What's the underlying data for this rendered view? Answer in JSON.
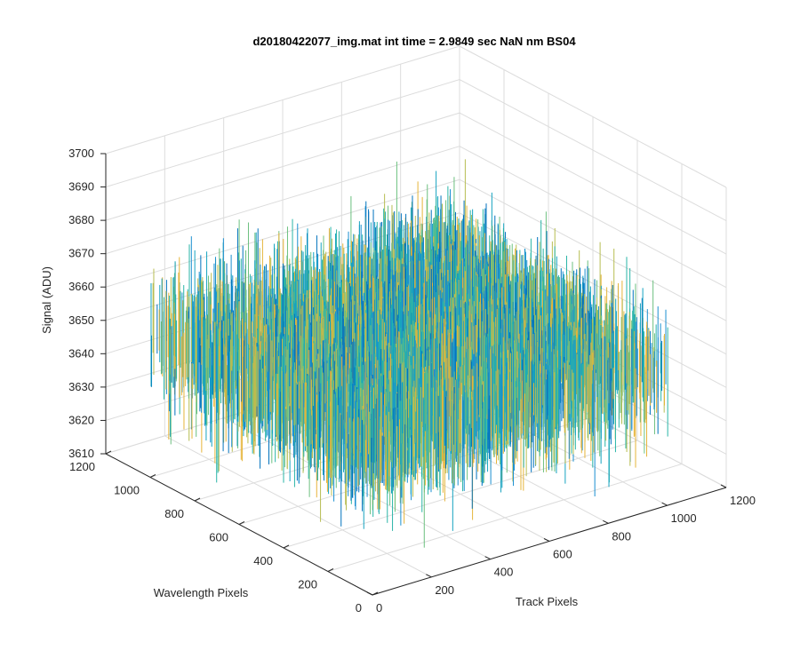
{
  "chart_data": {
    "type": "surface3d",
    "title": "d20180422077_img.mat int time = 2.9849 sec  NaN nm BS04",
    "xlabel": "Track Pixels",
    "ylabel": "Wavelength Pixels",
    "zlabel": "Signal (ADU)",
    "xlim": [
      0,
      1200
    ],
    "ylim": [
      0,
      1200
    ],
    "zlim": [
      3610,
      3700
    ],
    "x_ticks": [
      0,
      200,
      400,
      600,
      800,
      1000,
      1200
    ],
    "y_ticks": [
      0,
      200,
      400,
      600,
      800,
      1000,
      1200
    ],
    "z_ticks": [
      3610,
      3620,
      3630,
      3640,
      3650,
      3660,
      3670,
      3680,
      3690,
      3700
    ],
    "x_data_range": [
      0,
      1024
    ],
    "y_data_range": [
      0,
      1024
    ],
    "z_mean": 3650,
    "z_range_observed": [
      3612,
      3694
    ],
    "grid": true,
    "colormap": [
      "#0072bd",
      "#1a8fd0",
      "#16a3c0",
      "#2ab5a7",
      "#6cc07f",
      "#b7bd52",
      "#e6b43a"
    ]
  }
}
